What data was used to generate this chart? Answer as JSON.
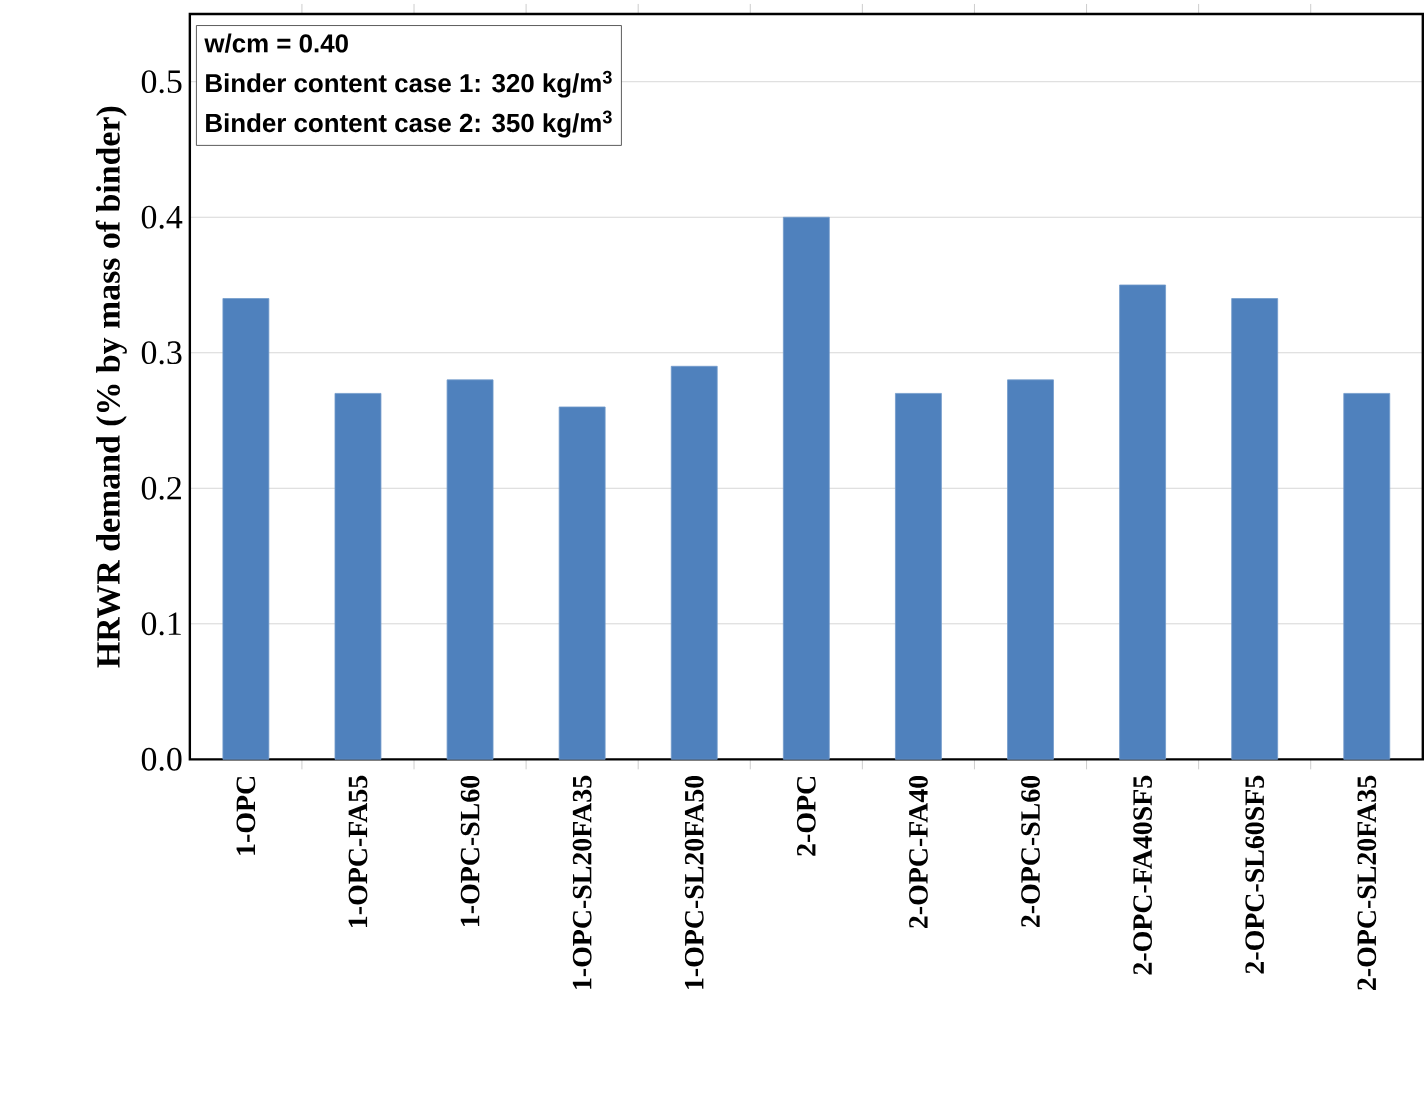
{
  "chart_data": {
    "type": "bar",
    "ylabel": "HRWR demand (% by mass of binder)",
    "categories": [
      "1-OPC",
      "1-OPC-FA55",
      "1-OPC-SL60",
      "1-OPC-SL20FA35",
      "1-OPC-SL20FA50",
      "2-OPC",
      "2-OPC-FA40",
      "2-OPC-SL60",
      "2-OPC-FA40SF5",
      "2-OPC-SL60SF5",
      "2-OPC-SL20FA35"
    ],
    "values": [
      0.34,
      0.27,
      0.28,
      0.26,
      0.29,
      0.4,
      0.27,
      0.28,
      0.35,
      0.34,
      0.27
    ],
    "color": "#4f81bd",
    "ylim": [
      0,
      0.55
    ],
    "yticks": [
      {
        "value": 0,
        "label": "0.0"
      },
      0.1,
      0.2,
      0.3,
      0.4,
      0.5
    ],
    "grid": "y",
    "annotations": [
      "w/cm = 0.40",
      "Binder content case 1: 320 kg/m$^{3}$",
      "Binder content case 2: 350 kg/m$^{3}$"
    ]
  }
}
